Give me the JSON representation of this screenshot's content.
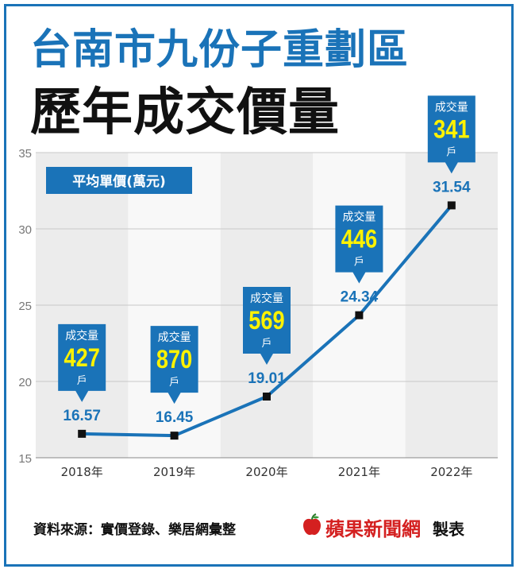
{
  "title_line1": "台南市九份子重劃區",
  "title_line2": "歷年成交價量",
  "unit_label": "平均單價(萬元)",
  "source": "資料來源：實價登錄、樂居網彙整",
  "brand": "蘋果新聞網",
  "made_by": "製表",
  "callout_head": "成交量",
  "callout_unit": "戶",
  "colors": {
    "brand_blue": "#1a73b8",
    "callout_yellow": "#fff200",
    "brand_red": "#d42020"
  },
  "chart_data": {
    "type": "line",
    "categories": [
      "2018年",
      "2019年",
      "2020年",
      "2021年",
      "2022年"
    ],
    "values": [
      16.57,
      16.45,
      19.01,
      24.34,
      31.54
    ],
    "volumes": [
      427,
      870,
      569,
      446,
      341
    ],
    "value_labels": [
      "16.57",
      "16.45",
      "19.01",
      "24.34",
      "31.54"
    ],
    "volume_labels": [
      "427",
      "870",
      "569",
      "446",
      "341"
    ],
    "ylabel": "平均單價(萬元)",
    "ylim": [
      15,
      35
    ],
    "yticks": [
      15,
      20,
      25,
      30,
      35
    ],
    "grid": true
  }
}
